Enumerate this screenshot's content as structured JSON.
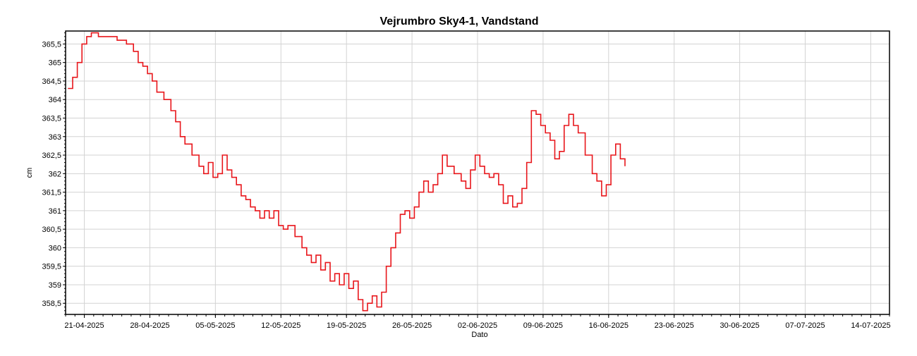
{
  "chart_data": {
    "type": "line",
    "title": "Vejrumbro Sky4-1, Vandstand",
    "xlabel": "Dato",
    "ylabel": "cm",
    "x_tick_labels": [
      "21-04-2025",
      "28-04-2025",
      "05-05-2025",
      "12-05-2025",
      "19-05-2025",
      "26-05-2025",
      "02-06-2025",
      "09-06-2025",
      "16-06-2025",
      "23-06-2025",
      "30-06-2025",
      "07-07-2025",
      "14-07-2025"
    ],
    "y_tick_labels": [
      "358,5",
      "359",
      "359,5",
      "360",
      "360,5",
      "361",
      "361,5",
      "362",
      "362,5",
      "363",
      "363,5",
      "364",
      "364,5",
      "365",
      "365,5"
    ],
    "xlim": [
      "2025-04-19",
      "2025-07-16"
    ],
    "ylim": [
      358.2,
      365.85
    ],
    "grid": true,
    "series": [
      {
        "color": "#e8161b",
        "points": [
          [
            "2025-04-19",
            364.3
          ],
          [
            "2025-04-19",
            364.6
          ],
          [
            "2025-04-20",
            365.0
          ],
          [
            "2025-04-20",
            365.5
          ],
          [
            "2025-04-21",
            365.7
          ],
          [
            "2025-04-21",
            365.8
          ],
          [
            "2025-04-22",
            365.7
          ],
          [
            "2025-04-23",
            365.7
          ],
          [
            "2025-04-24",
            365.6
          ],
          [
            "2025-04-25",
            365.5
          ],
          [
            "2025-04-26",
            365.3
          ],
          [
            "2025-04-26",
            365.0
          ],
          [
            "2025-04-27",
            364.9
          ],
          [
            "2025-04-27",
            364.7
          ],
          [
            "2025-04-28",
            364.5
          ],
          [
            "2025-04-28",
            364.2
          ],
          [
            "2025-04-29",
            364.0
          ],
          [
            "2025-04-30",
            363.7
          ],
          [
            "2025-04-30",
            363.4
          ],
          [
            "2025-05-01",
            363.0
          ],
          [
            "2025-05-01",
            362.8
          ],
          [
            "2025-05-02",
            362.5
          ],
          [
            "2025-05-03",
            362.2
          ],
          [
            "2025-05-03",
            362.0
          ],
          [
            "2025-05-04",
            362.3
          ],
          [
            "2025-05-04",
            361.9
          ],
          [
            "2025-05-05",
            362.0
          ],
          [
            "2025-05-05",
            362.5
          ],
          [
            "2025-05-06",
            362.1
          ],
          [
            "2025-05-06",
            361.9
          ],
          [
            "2025-05-07",
            361.7
          ],
          [
            "2025-05-07",
            361.4
          ],
          [
            "2025-05-08",
            361.3
          ],
          [
            "2025-05-08",
            361.1
          ],
          [
            "2025-05-09",
            361.0
          ],
          [
            "2025-05-09",
            360.8
          ],
          [
            "2025-05-10",
            361.0
          ],
          [
            "2025-05-10",
            360.8
          ],
          [
            "2025-05-11",
            361.0
          ],
          [
            "2025-05-11",
            360.6
          ],
          [
            "2025-05-12",
            360.5
          ],
          [
            "2025-05-12",
            360.6
          ],
          [
            "2025-05-13",
            360.3
          ],
          [
            "2025-05-14",
            360.0
          ],
          [
            "2025-05-14",
            359.8
          ],
          [
            "2025-05-15",
            359.6
          ],
          [
            "2025-05-15",
            359.8
          ],
          [
            "2025-05-16",
            359.4
          ],
          [
            "2025-05-16",
            359.6
          ],
          [
            "2025-05-17",
            359.1
          ],
          [
            "2025-05-17",
            359.3
          ],
          [
            "2025-05-18",
            359.0
          ],
          [
            "2025-05-18",
            359.3
          ],
          [
            "2025-05-19",
            358.9
          ],
          [
            "2025-05-19",
            359.1
          ],
          [
            "2025-05-20",
            358.6
          ],
          [
            "2025-05-20",
            358.3
          ],
          [
            "2025-05-21",
            358.5
          ],
          [
            "2025-05-21",
            358.7
          ],
          [
            "2025-05-22",
            358.4
          ],
          [
            "2025-05-22",
            358.8
          ],
          [
            "2025-05-23",
            359.5
          ],
          [
            "2025-05-23",
            360.0
          ],
          [
            "2025-05-24",
            360.4
          ],
          [
            "2025-05-24",
            360.9
          ],
          [
            "2025-05-25",
            361.0
          ],
          [
            "2025-05-25",
            360.8
          ],
          [
            "2025-05-26",
            361.1
          ],
          [
            "2025-05-26",
            361.5
          ],
          [
            "2025-05-27",
            361.8
          ],
          [
            "2025-05-27",
            361.5
          ],
          [
            "2025-05-28",
            361.7
          ],
          [
            "2025-05-28",
            362.0
          ],
          [
            "2025-05-29",
            362.5
          ],
          [
            "2025-05-29",
            362.2
          ],
          [
            "2025-05-30",
            362.0
          ],
          [
            "2025-05-31",
            361.8
          ],
          [
            "2025-05-31",
            361.6
          ],
          [
            "2025-06-01",
            362.1
          ],
          [
            "2025-06-01",
            362.5
          ],
          [
            "2025-06-02",
            362.2
          ],
          [
            "2025-06-02",
            362.0
          ],
          [
            "2025-06-03",
            361.9
          ],
          [
            "2025-06-03",
            362.0
          ],
          [
            "2025-06-04",
            361.7
          ],
          [
            "2025-06-04",
            361.2
          ],
          [
            "2025-06-05",
            361.4
          ],
          [
            "2025-06-05",
            361.1
          ],
          [
            "2025-06-06",
            361.2
          ],
          [
            "2025-06-06",
            361.6
          ],
          [
            "2025-06-07",
            362.3
          ],
          [
            "2025-06-07",
            363.7
          ],
          [
            "2025-06-08",
            363.6
          ],
          [
            "2025-06-08",
            363.3
          ],
          [
            "2025-06-09",
            363.1
          ],
          [
            "2025-06-09",
            362.9
          ],
          [
            "2025-06-10",
            362.4
          ],
          [
            "2025-06-10",
            362.6
          ],
          [
            "2025-06-11",
            363.3
          ],
          [
            "2025-06-11",
            363.6
          ],
          [
            "2025-06-12",
            363.3
          ],
          [
            "2025-06-12",
            363.1
          ],
          [
            "2025-06-13",
            362.5
          ],
          [
            "2025-06-14",
            362.0
          ],
          [
            "2025-06-14",
            361.8
          ],
          [
            "2025-06-15",
            361.4
          ],
          [
            "2025-06-15",
            361.7
          ],
          [
            "2025-06-16",
            362.5
          ],
          [
            "2025-06-16",
            362.8
          ],
          [
            "2025-06-17",
            362.4
          ],
          [
            "2025-06-17",
            362.2
          ]
        ]
      }
    ]
  }
}
